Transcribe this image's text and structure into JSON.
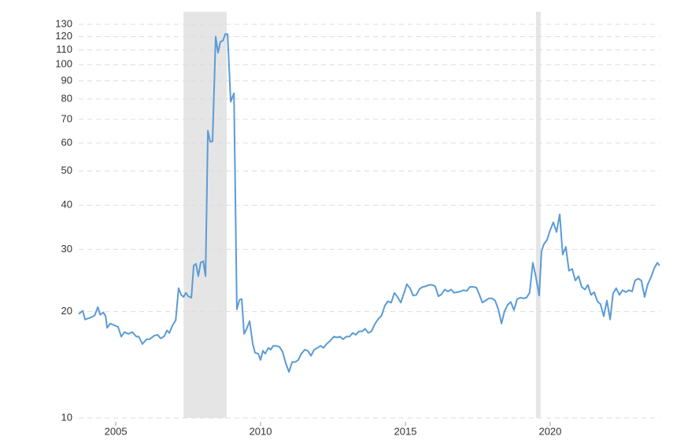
{
  "chart_data": {
    "type": "line",
    "yscale": "log",
    "grid": true,
    "xlim": [
      2003.72,
      2023.78
    ],
    "xticks": [
      2005,
      2010,
      2015,
      2020
    ],
    "ylim": [
      10,
      130
    ],
    "yticks": [
      10,
      20,
      30,
      40,
      50,
      60,
      70,
      80,
      90,
      100,
      110,
      120,
      130
    ],
    "shaded_ranges": [
      [
        2007.34,
        2008.83
      ],
      [
        2019.51,
        2019.67
      ]
    ],
    "shade_color": "#e5e5e5",
    "series": [
      {
        "color": "#5b9bd5",
        "x": [
          2003.72,
          2003.86,
          2003.94,
          2004.1,
          2004.27,
          2004.38,
          2004.46,
          2004.57,
          2004.65,
          2004.7,
          2004.81,
          2004.95,
          2005.08,
          2005.19,
          2005.3,
          2005.43,
          2005.57,
          2005.71,
          2005.79,
          2005.92,
          2006.06,
          2006.17,
          2006.33,
          2006.44,
          2006.55,
          2006.66,
          2006.77,
          2006.85,
          2006.96,
          2007.07,
          2007.17,
          2007.26,
          2007.34,
          2007.42,
          2007.5,
          2007.61,
          2007.69,
          2007.77,
          2007.85,
          2007.93,
          2008.02,
          2008.1,
          2008.18,
          2008.26,
          2008.34,
          2008.45,
          2008.53,
          2008.61,
          2008.7,
          2008.78,
          2008.86,
          2008.97,
          2009.08,
          2009.18,
          2009.27,
          2009.35,
          2009.43,
          2009.51,
          2009.62,
          2009.73,
          2009.81,
          2009.92,
          2010.0,
          2010.08,
          2010.16,
          2010.27,
          2010.35,
          2010.43,
          2010.54,
          2010.65,
          2010.76,
          2010.87,
          2010.98,
          2011.09,
          2011.2,
          2011.3,
          2011.41,
          2011.52,
          2011.63,
          2011.74,
          2011.85,
          2011.96,
          2012.07,
          2012.17,
          2012.28,
          2012.39,
          2012.53,
          2012.64,
          2012.74,
          2012.85,
          2012.96,
          2013.07,
          2013.18,
          2013.29,
          2013.4,
          2013.51,
          2013.61,
          2013.72,
          2013.83,
          2013.94,
          2014.05,
          2014.18,
          2014.29,
          2014.4,
          2014.51,
          2014.62,
          2014.73,
          2014.84,
          2014.95,
          2015.05,
          2015.16,
          2015.27,
          2015.38,
          2015.49,
          2015.6,
          2015.71,
          2015.82,
          2015.92,
          2016.03,
          2016.14,
          2016.25,
          2016.36,
          2016.47,
          2016.58,
          2016.68,
          2016.79,
          2016.9,
          2017.01,
          2017.12,
          2017.23,
          2017.34,
          2017.45,
          2017.55,
          2017.66,
          2017.77,
          2017.88,
          2017.99,
          2018.1,
          2018.21,
          2018.32,
          2018.42,
          2018.53,
          2018.64,
          2018.75,
          2018.86,
          2018.97,
          2019.08,
          2019.18,
          2019.29,
          2019.4,
          2019.51,
          2019.62,
          2019.7,
          2019.78,
          2019.89,
          2020.0,
          2020.11,
          2020.22,
          2020.33,
          2020.43,
          2020.54,
          2020.65,
          2020.76,
          2020.87,
          2020.98,
          2021.09,
          2021.2,
          2021.3,
          2021.41,
          2021.52,
          2021.63,
          2021.74,
          2021.85,
          2021.96,
          2022.07,
          2022.17,
          2022.28,
          2022.39,
          2022.5,
          2022.61,
          2022.72,
          2022.83,
          2022.93,
          2023.04,
          2023.15,
          2023.26,
          2023.37,
          2023.48,
          2023.59,
          2023.7,
          2023.78
        ],
        "values": [
          19.7,
          20.1,
          19.0,
          19.2,
          19.5,
          20.6,
          19.6,
          19.9,
          19.4,
          18.0,
          18.5,
          18.3,
          18.1,
          17.0,
          17.5,
          17.3,
          17.5,
          17.0,
          17.0,
          16.2,
          16.7,
          16.7,
          17.1,
          17.2,
          16.8,
          17.0,
          17.7,
          17.4,
          18.3,
          18.9,
          23.3,
          22.3,
          22.0,
          22.6,
          22.1,
          21.9,
          27.0,
          27.3,
          25.2,
          27.5,
          27.8,
          25.2,
          65.0,
          60.5,
          60.7,
          120.0,
          108.0,
          116.0,
          117.0,
          122.0,
          122.0,
          78.5,
          83.0,
          20.3,
          21.6,
          21.7,
          17.3,
          17.8,
          18.8,
          16.2,
          15.3,
          15.2,
          14.6,
          15.5,
          15.2,
          15.8,
          15.6,
          16.0,
          16.0,
          15.9,
          15.4,
          14.3,
          13.5,
          14.4,
          14.4,
          14.6,
          15.2,
          15.6,
          15.5,
          15.0,
          15.6,
          15.8,
          16.0,
          15.8,
          16.2,
          16.5,
          17.0,
          16.9,
          17.0,
          16.7,
          17.0,
          17.0,
          17.4,
          17.2,
          17.6,
          17.6,
          17.9,
          17.4,
          17.6,
          18.4,
          19.0,
          19.5,
          20.8,
          21.4,
          21.2,
          22.6,
          22.0,
          21.2,
          22.5,
          23.9,
          23.3,
          22.2,
          22.3,
          23.2,
          23.5,
          23.6,
          23.8,
          23.8,
          23.6,
          22.1,
          22.4,
          23.1,
          22.8,
          23.1,
          22.6,
          22.7,
          22.8,
          23.0,
          22.9,
          23.5,
          23.5,
          23.4,
          22.4,
          21.2,
          21.5,
          21.8,
          21.8,
          21.5,
          20.3,
          18.5,
          20.0,
          20.9,
          21.3,
          20.2,
          21.7,
          21.9,
          21.8,
          21.9,
          22.6,
          27.5,
          25.0,
          22.2,
          29.6,
          31.0,
          31.9,
          34.0,
          35.8,
          33.6,
          37.7,
          29.0,
          30.5,
          26.1,
          26.4,
          24.5,
          25.2,
          23.5,
          23.1,
          23.8,
          22.3,
          22.7,
          21.4,
          21.0,
          19.4,
          21.5,
          19.0,
          22.5,
          23.3,
          22.3,
          23.0,
          22.7,
          23.0,
          22.8,
          24.5,
          24.8,
          24.5,
          22.0,
          23.9,
          25.0,
          26.5,
          27.5,
          27.0
        ]
      }
    ]
  }
}
